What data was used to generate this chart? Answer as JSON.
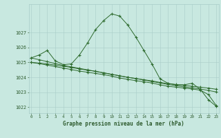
{
  "x_labels": [
    "0",
    "1",
    "2",
    "3",
    "4",
    "5",
    "6",
    "7",
    "8",
    "9",
    "10",
    "11",
    "12",
    "13",
    "14",
    "15",
    "16",
    "17",
    "18",
    "19",
    "20",
    "21",
    "22",
    "23"
  ],
  "series": [
    [
      1025.3,
      1025.5,
      1025.8,
      1025.1,
      1024.85,
      1024.9,
      1025.5,
      1026.3,
      1027.2,
      1027.8,
      1028.25,
      1028.1,
      1027.5,
      1026.7,
      1025.8,
      1024.9,
      1023.9,
      1023.6,
      1023.5,
      1023.5,
      1023.6,
      1023.2,
      1022.5,
      1022.05
    ],
    [
      1025.0,
      1024.95,
      1024.9,
      1024.82,
      1024.74,
      1024.66,
      1024.56,
      1024.48,
      1024.4,
      1024.3,
      1024.2,
      1024.1,
      1024.0,
      1023.92,
      1023.84,
      1023.76,
      1023.66,
      1023.58,
      1023.52,
      1023.46,
      1023.4,
      1023.34,
      1023.28,
      1023.2
    ],
    [
      1025.0,
      1024.92,
      1024.82,
      1024.72,
      1024.62,
      1024.52,
      1024.42,
      1024.34,
      1024.26,
      1024.18,
      1024.08,
      1023.96,
      1023.86,
      1023.78,
      1023.7,
      1023.62,
      1023.5,
      1023.4,
      1023.34,
      1023.28,
      1023.22,
      1023.14,
      1022.85,
      1022.1
    ],
    [
      1025.3,
      1025.18,
      1025.05,
      1024.92,
      1024.8,
      1024.7,
      1024.6,
      1024.5,
      1024.4,
      1024.3,
      1024.2,
      1024.1,
      1024.0,
      1023.92,
      1023.82,
      1023.72,
      1023.62,
      1023.52,
      1023.44,
      1023.36,
      1023.3,
      1023.22,
      1023.12,
      1023.02
    ]
  ],
  "line_color": "#2d6a2d",
  "marker": "+",
  "background_color": "#c8e8e0",
  "grid_color": "#a8ccc8",
  "text_color": "#2d5a2d",
  "ylim": [
    1021.6,
    1028.9
  ],
  "yticks": [
    1022,
    1023,
    1024,
    1025,
    1026,
    1027
  ],
  "xlabel": "Graphe pression niveau de la mer (hPa)",
  "figsize": [
    3.2,
    2.0
  ],
  "dpi": 100
}
